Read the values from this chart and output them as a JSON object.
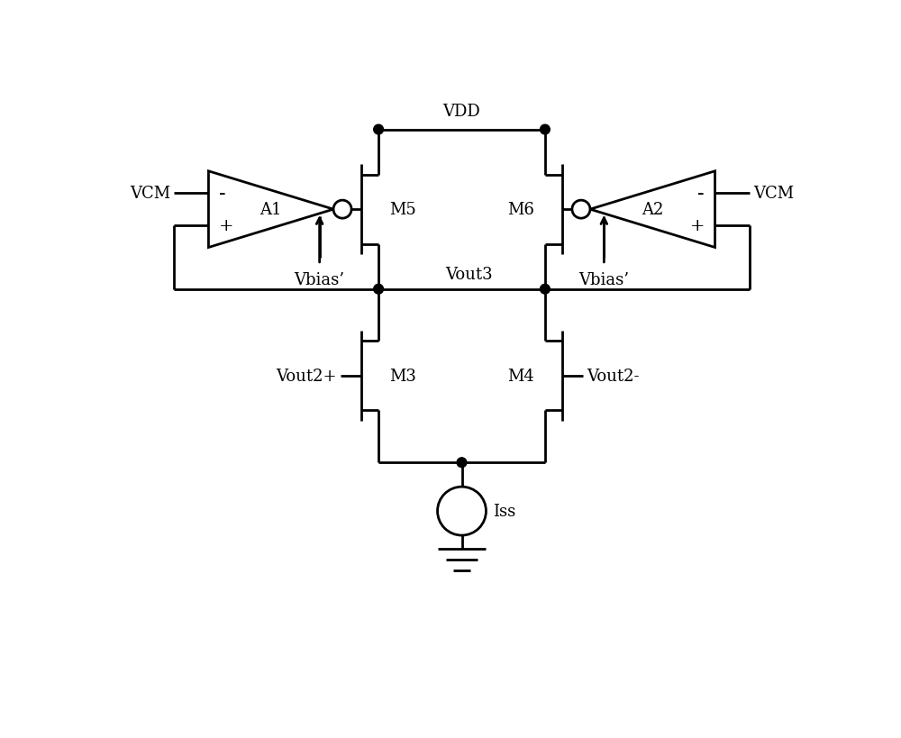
{
  "bg_color": "#ffffff",
  "line_color": "#000000",
  "line_width": 2.0,
  "vdd_label": "VDD",
  "vcm_left_label": "VCM",
  "vcm_right_label": "VCM",
  "vbias_left_label": "Vbias’",
  "vbias_right_label": "Vbias’",
  "vout3_label": "Vout3",
  "vout2p_label": "Vout2+",
  "vout2m_label": "Vout2-",
  "iss_label": "Iss",
  "m3_label": "M3",
  "m4_label": "M4",
  "m5_label": "M5",
  "m6_label": "M6",
  "a1_label": "A1",
  "a2_label": "A2",
  "font_size": 13
}
